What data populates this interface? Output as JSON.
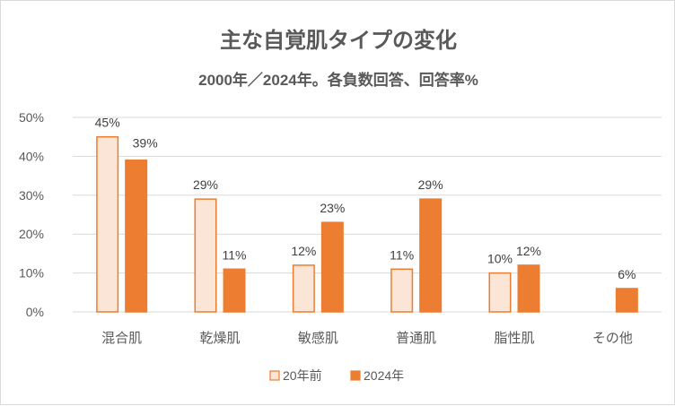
{
  "chart_data": {
    "type": "bar",
    "title": "主な自覚肌タイプの変化",
    "subtitle": "2000年／2024年。各負数回答、回答率%",
    "categories": [
      "混合肌",
      "乾燥肌",
      "敏感肌",
      "普通肌",
      "脂性肌",
      "その他"
    ],
    "series": [
      {
        "name": "20年前",
        "values": [
          45,
          29,
          12,
          11,
          10,
          null
        ],
        "labels": [
          "45%",
          "29%",
          "12%",
          "11%",
          "10%",
          ""
        ],
        "fill": "#fbe5d6",
        "stroke": "#ed7d31"
      },
      {
        "name": "2024年",
        "values": [
          39,
          11,
          23,
          29,
          12,
          6
        ],
        "labels": [
          "39%",
          "11%",
          "23%",
          "29%",
          "12%",
          "6%"
        ],
        "fill": "#ed7d31",
        "stroke": "#ed7d31"
      }
    ],
    "yticks": [
      "0%",
      "10%",
      "20%",
      "30%",
      "40%",
      "50%"
    ],
    "ylim": [
      0,
      50
    ],
    "grid": true,
    "legend": "bottom"
  }
}
